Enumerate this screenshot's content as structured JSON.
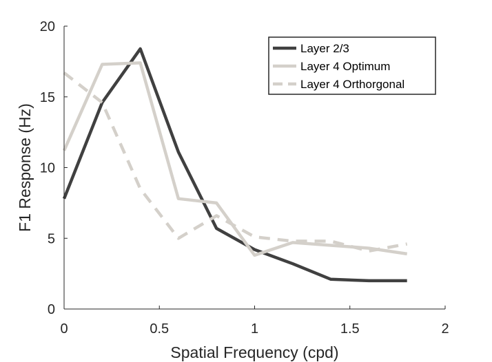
{
  "chart_data": {
    "type": "line",
    "title": "",
    "xlabel": "Spatial Frequency (cpd)",
    "ylabel": "F1 Response (Hz)",
    "xlim": [
      0,
      2
    ],
    "ylim": [
      0,
      20
    ],
    "xticks": [
      0,
      0.5,
      1,
      1.5,
      2
    ],
    "xtick_labels": [
      "0",
      "0.5",
      "1",
      "1.5",
      "2"
    ],
    "yticks": [
      0,
      5,
      10,
      15,
      20
    ],
    "ytick_labels": [
      "0",
      "5",
      "10",
      "15",
      "20"
    ],
    "grid": false,
    "legend_position": "top-right",
    "series": [
      {
        "name": "Layer 2/3",
        "color": "#404040",
        "dash": "solid",
        "x": [
          0,
          0.2,
          0.4,
          0.6,
          0.8,
          1.0,
          1.2,
          1.4,
          1.6,
          1.8
        ],
        "y": [
          7.8,
          14.6,
          18.4,
          11.1,
          5.7,
          4.2,
          3.2,
          2.1,
          2.0,
          2.0
        ]
      },
      {
        "name": "Layer 4 Optimum",
        "color": "#d4d0ca",
        "dash": "solid",
        "x": [
          0,
          0.2,
          0.4,
          0.6,
          0.8,
          1.0,
          1.2,
          1.4,
          1.6,
          1.8
        ],
        "y": [
          11.2,
          17.3,
          17.4,
          7.8,
          7.5,
          3.8,
          4.7,
          4.5,
          4.3,
          3.9
        ]
      },
      {
        "name": "Layer 4 Orthorgonal",
        "color": "#d4d0ca",
        "dash": "dashed",
        "x": [
          0,
          0.2,
          0.4,
          0.6,
          0.8,
          1.0,
          1.2,
          1.4,
          1.6,
          1.8
        ],
        "y": [
          16.7,
          14.6,
          8.5,
          5.0,
          6.6,
          5.1,
          4.8,
          4.8,
          4.1,
          4.6
        ]
      }
    ]
  }
}
